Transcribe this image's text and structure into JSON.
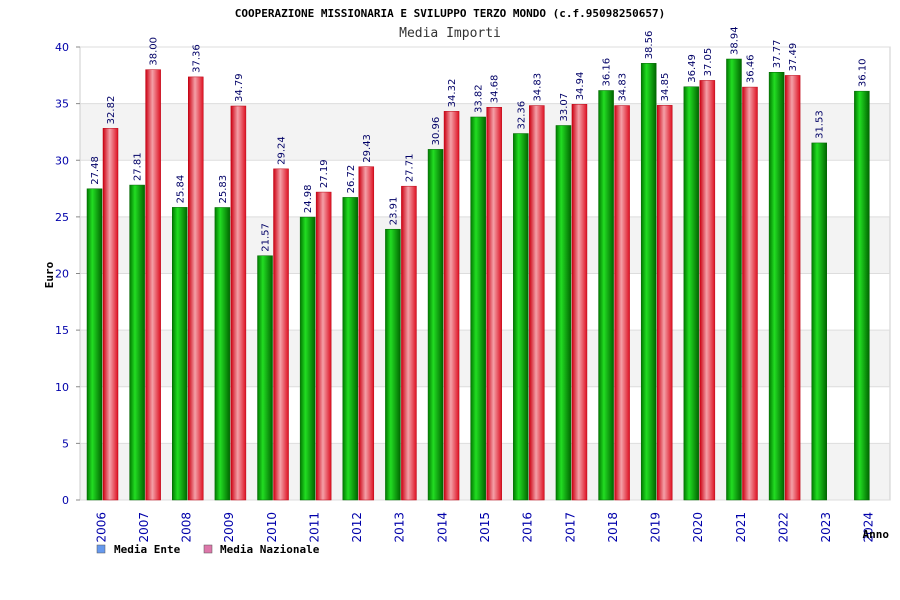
{
  "chart_data": {
    "type": "bar",
    "title": "COOPERAZIONE MISSIONARIA E SVILUPPO TERZO MONDO (c.f.95098250657)",
    "subtitle": "Media Importi",
    "ylabel": "Euro",
    "xlabel": "Anno",
    "ylim": [
      0,
      40
    ],
    "yticks": [
      0,
      5,
      10,
      15,
      20,
      25,
      30,
      35,
      40
    ],
    "grid": true,
    "legend_position": "bottom-left",
    "categories": [
      "2006",
      "2007",
      "2008",
      "2009",
      "2010",
      "2011",
      "2012",
      "2013",
      "2014",
      "2015",
      "2016",
      "2017",
      "2018",
      "2019",
      "2020",
      "2021",
      "2022",
      "2023",
      "2024"
    ],
    "series": [
      {
        "name": "Media Ente",
        "color": "#00aa00",
        "legend_color": "#6699ee",
        "values": [
          27.48,
          27.81,
          25.84,
          25.83,
          21.57,
          24.98,
          26.72,
          23.91,
          30.96,
          33.82,
          32.36,
          33.07,
          36.16,
          38.56,
          36.49,
          38.94,
          37.77,
          31.53,
          36.1
        ],
        "labels": [
          "27.48",
          "27.81",
          "25.84",
          "25.83",
          "21.57",
          "24.98",
          "26.72",
          "23.91",
          "30.96",
          "33.82",
          "32.36",
          "33.07",
          "36.16",
          "38.56",
          "36.49",
          "38.94",
          "37.77",
          "31.53",
          "36.10"
        ]
      },
      {
        "name": "Media Nazionale",
        "color": "#ee2233",
        "legend_color": "#dd77aa",
        "values": [
          32.82,
          38.0,
          37.36,
          34.79,
          29.24,
          27.19,
          29.43,
          27.71,
          34.32,
          34.68,
          34.83,
          34.94,
          34.83,
          34.85,
          37.05,
          36.46,
          37.49,
          null,
          null
        ],
        "labels": [
          "32.82",
          "38.00",
          "37.36",
          "34.79",
          "29.24",
          "27.19",
          "29.43",
          "27.71",
          "34.32",
          "34.68",
          "34.83",
          "34.94",
          "34.83",
          "34.85",
          "37.05",
          "36.46",
          "37.49",
          "",
          ""
        ]
      }
    ]
  }
}
